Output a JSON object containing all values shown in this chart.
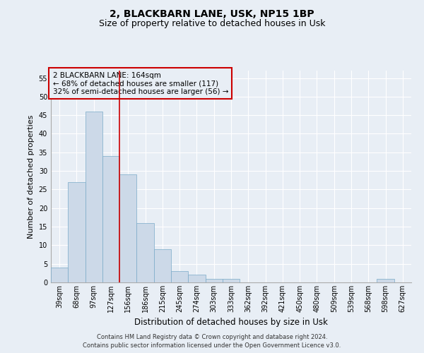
{
  "title1": "2, BLACKBARN LANE, USK, NP15 1BP",
  "title2": "Size of property relative to detached houses in Usk",
  "xlabel": "Distribution of detached houses by size in Usk",
  "ylabel": "Number of detached properties",
  "categories": [
    "39sqm",
    "68sqm",
    "97sqm",
    "127sqm",
    "156sqm",
    "186sqm",
    "215sqm",
    "245sqm",
    "274sqm",
    "303sqm",
    "333sqm",
    "362sqm",
    "392sqm",
    "421sqm",
    "450sqm",
    "480sqm",
    "509sqm",
    "539sqm",
    "568sqm",
    "598sqm",
    "627sqm"
  ],
  "values": [
    4,
    27,
    46,
    34,
    29,
    16,
    9,
    3,
    2,
    1,
    1,
    0,
    0,
    0,
    0,
    0,
    0,
    0,
    0,
    1,
    0
  ],
  "bar_color": "#ccd9e8",
  "bar_edge_color": "#7aaac8",
  "vline_x": 4,
  "vline_color": "#cc0000",
  "ylim": [
    0,
    57
  ],
  "yticks": [
    0,
    5,
    10,
    15,
    20,
    25,
    30,
    35,
    40,
    45,
    50,
    55
  ],
  "annotation_box_text": "2 BLACKBARN LANE: 164sqm\n← 68% of detached houses are smaller (117)\n32% of semi-detached houses are larger (56) →",
  "annotation_box_color": "#cc0000",
  "footer1": "Contains HM Land Registry data © Crown copyright and database right 2024.",
  "footer2": "Contains public sector information licensed under the Open Government Licence v3.0.",
  "background_color": "#e8eef5",
  "grid_color": "#ffffff",
  "title1_fontsize": 10,
  "title2_fontsize": 9,
  "xlabel_fontsize": 8.5,
  "ylabel_fontsize": 8,
  "tick_fontsize": 7,
  "annotation_fontsize": 7.5,
  "footer_fontsize": 6
}
